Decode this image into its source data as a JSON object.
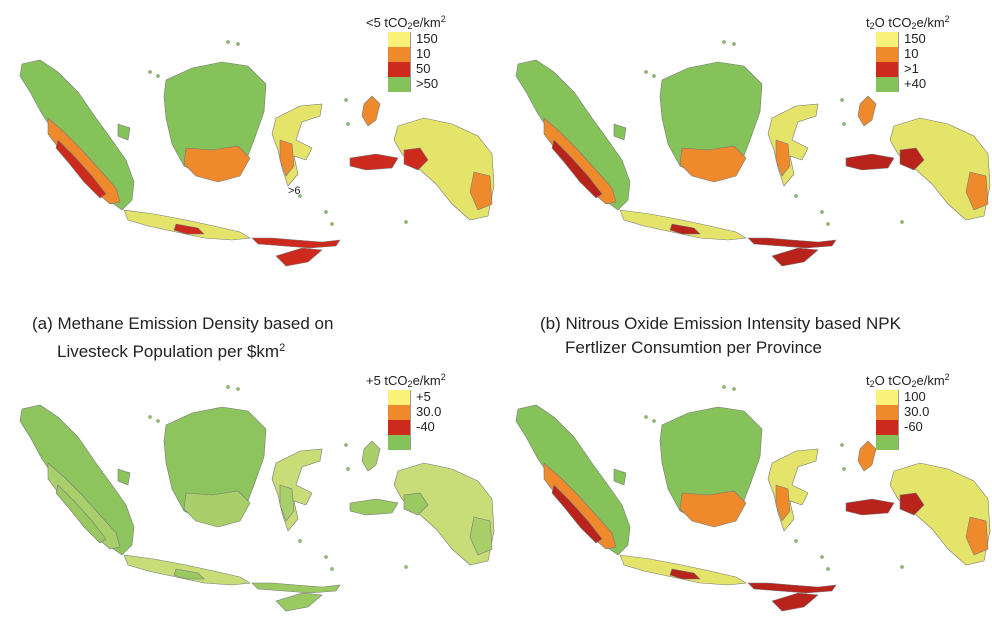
{
  "panels": [
    {
      "id": "a",
      "legend": {
        "title": "<5 tCO2e/km2",
        "title_parts": [
          "<5 tCO",
          "2",
          "e/km",
          "2"
        ],
        "items": [
          {
            "label": "150",
            "color": "#fbf27a"
          },
          {
            "label": "10",
            "color": "#ee8a2c"
          },
          {
            "label": "50",
            "color": "#cc2a1c"
          },
          {
            "label": ">50",
            "color": "#86c25a"
          }
        ]
      },
      "annotation": ">6",
      "palette": {
        "base": "#86c25a",
        "warm": "#ee8a2c",
        "hot": "#cc2a1c",
        "yellow": "#e4e46a"
      }
    },
    {
      "id": "b",
      "legend": {
        "title": "t2O tCO2e/km2",
        "title_parts": [
          "t",
          "2",
          "O tCO",
          "2",
          "e/km",
          "2"
        ],
        "items": [
          {
            "label": "150",
            "color": "#fbf27a"
          },
          {
            "label": "10",
            "color": "#ee8a2c"
          },
          {
            "label": ">1",
            "color": "#cc2a1c"
          },
          {
            "label": "+40",
            "color": "#86c25a"
          }
        ]
      },
      "palette": {
        "base": "#86c25a",
        "warm": "#ee8a2c",
        "hot": "#b8231c",
        "yellow": "#e4e46a"
      }
    },
    {
      "id": "c",
      "legend": {
        "title": "+5 tCO2e/km2",
        "title_parts": [
          "+5 tCO",
          "2",
          "e/km",
          "2"
        ],
        "items": [
          {
            "label": "+5",
            "color": "#fbf27a"
          },
          {
            "label": "30.0",
            "color": "#ee8a2c"
          },
          {
            "label": "-40",
            "color": "#cc2a1c"
          },
          {
            "label": "",
            "color": "#86c25a"
          }
        ]
      },
      "palette": {
        "base": "#8dc45e",
        "warm": "#a9cf6a",
        "hot": "#9ac962",
        "yellow": "#c8dc78"
      }
    },
    {
      "id": "d",
      "legend": {
        "title": "t2O tCO2e/km2",
        "title_parts": [
          "t",
          "2",
          "O tCO",
          "2",
          "e/km",
          "2"
        ],
        "items": [
          {
            "label": "100",
            "color": "#fbf27a"
          },
          {
            "label": "30.0",
            "color": "#ee8a2c"
          },
          {
            "label": "-60",
            "color": "#cc2a1c"
          },
          {
            "label": "",
            "color": "#86c25a"
          }
        ]
      },
      "palette": {
        "base": "#86c25a",
        "warm": "#ee8a2c",
        "hot": "#b8231c",
        "yellow": "#e4e46a"
      }
    }
  ],
  "captions": {
    "a_line1": "(a) Methane Emission Density based on",
    "a_line2_main": "Livesteck Population per $km",
    "a_line2_sup": "2",
    "b_line1": "(b) Nitrous Oxide Emission Intensity based NPK",
    "b_line2": "Fertlizer Consumtion per Province"
  }
}
